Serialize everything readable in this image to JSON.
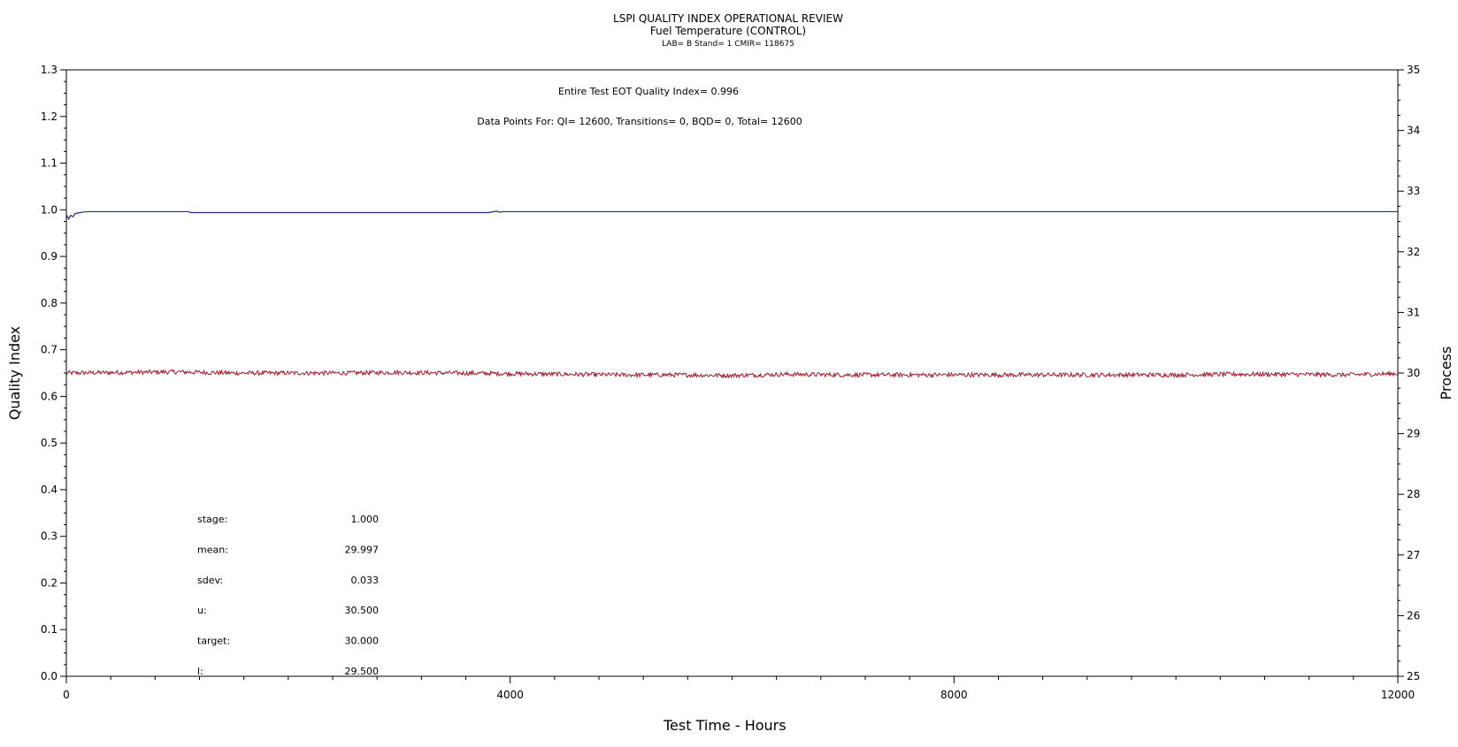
{
  "chart_data": {
    "type": "line",
    "title": "LSPI QUALITY INDEX OPERATIONAL REVIEW",
    "subtitle": "Fuel Temperature (CONTROL)",
    "subtitle2": "LAB= B Stand= 1 CMIR= 118675",
    "xlabel": "Test Time - Hours",
    "ylabel": "Quality Index",
    "y2label": "Process",
    "xlim": [
      0,
      12000
    ],
    "ylim": [
      0,
      1.3
    ],
    "y2lim": [
      25,
      35
    ],
    "x_ticks": [
      "0",
      "4000",
      "8000",
      "12000"
    ],
    "x_tick_values": [
      0,
      4000,
      8000,
      12000
    ],
    "y_ticks": [
      "0.0",
      "0.1",
      "0.2",
      "0.3",
      "0.4",
      "0.5",
      "0.6",
      "0.7",
      "0.8",
      "0.9",
      "1.0",
      "1.1",
      "1.2",
      "1.3"
    ],
    "y_tick_values": [
      0,
      0.1,
      0.2,
      0.3,
      0.4,
      0.5,
      0.6,
      0.7,
      0.8,
      0.9,
      1.0,
      1.1,
      1.2,
      1.3
    ],
    "y2_ticks": [
      "25",
      "26",
      "27",
      "28",
      "29",
      "30",
      "31",
      "32",
      "33",
      "34",
      "35"
    ],
    "y2_tick_values": [
      25,
      26,
      27,
      28,
      29,
      30,
      31,
      32,
      33,
      34,
      35
    ],
    "annotations": {
      "qi_line": "Entire Test EOT Quality Index=   0.996",
      "points_line": "Data Points For: QI= 12600, Transitions=      0, BQD=      0, Total= 12600"
    },
    "stats": [
      {
        "label": "stage:",
        "value": "1.000"
      },
      {
        "label": "mean:",
        "value": "29.997"
      },
      {
        "label": "sdev:",
        "value": "0.033"
      },
      {
        "label": "u:",
        "value": "30.500"
      },
      {
        "label": "target:",
        "value": "30.000"
      },
      {
        "label": "l:",
        "value": "29.500"
      }
    ],
    "series": [
      {
        "axis": "left",
        "color": "#1f2a7a",
        "x": [
          0,
          20,
          40,
          60,
          80,
          100,
          150,
          200,
          300,
          500,
          800,
          1100,
          1120,
          1200,
          1600,
          2400,
          3200,
          3800,
          3880,
          3900,
          3940,
          4000,
          5000,
          6000,
          7000,
          8000,
          9000,
          10000,
          11000,
          12000
        ],
        "y": [
          0.99,
          0.98,
          0.988,
          0.985,
          0.992,
          0.993,
          0.995,
          0.996,
          0.996,
          0.996,
          0.996,
          0.996,
          0.994,
          0.994,
          0.994,
          0.994,
          0.994,
          0.994,
          0.997,
          0.995,
          0.996,
          0.996,
          0.996,
          0.996,
          0.996,
          0.996,
          0.996,
          0.996,
          0.996,
          0.996
        ]
      },
      {
        "axis": "right",
        "color": "#a3162a",
        "x": [
          0,
          500,
          1000,
          1500,
          2000,
          2500,
          3000,
          3500,
          4000,
          4500,
          5000,
          5500,
          6000,
          6500,
          7000,
          7500,
          8000,
          8500,
          9000,
          9500,
          10000,
          10500,
          11000,
          11500,
          12000
        ],
        "y": [
          30.0,
          30.01,
          30.02,
          30.0,
          30.0,
          30.0,
          30.01,
          30.0,
          29.99,
          29.98,
          29.97,
          29.97,
          29.96,
          29.98,
          29.97,
          29.97,
          29.97,
          29.97,
          29.97,
          29.97,
          29.97,
          29.98,
          29.98,
          29.97,
          29.99
        ],
        "noise_sdev": 0.033
      }
    ]
  }
}
